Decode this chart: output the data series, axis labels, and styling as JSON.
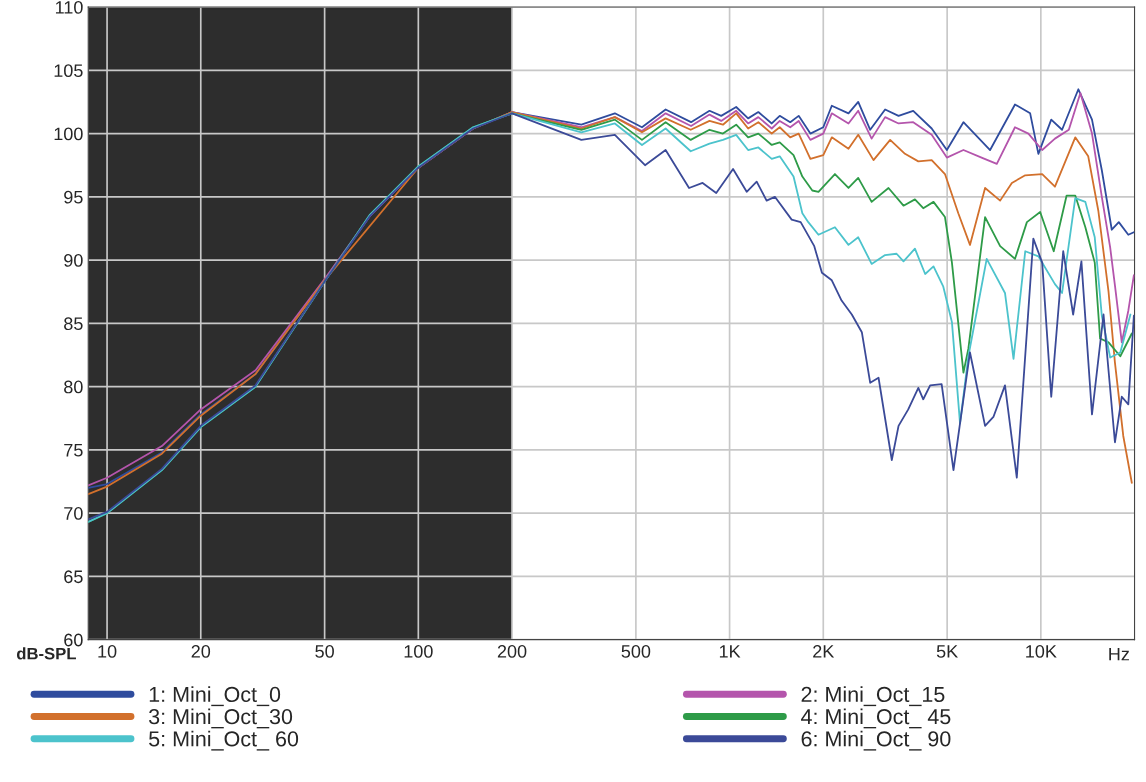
{
  "chart_data": {
    "type": "line",
    "xlabel": "Hz",
    "ylabel": "dB-SPL",
    "log": "x",
    "xlim": [
      8.7,
      20000
    ],
    "ylim": [
      60,
      110
    ],
    "xticks": [
      10,
      20,
      50,
      100,
      200,
      500,
      {
        "value": 1000,
        "label": "1K"
      },
      {
        "value": 2000,
        "label": "2K"
      },
      {
        "value": 5000,
        "label": "5K"
      },
      {
        "value": 10000,
        "label": "10K"
      }
    ],
    "yticks": [
      60,
      65,
      70,
      75,
      80,
      85,
      90,
      95,
      100,
      105,
      110
    ],
    "grid": true,
    "legend": "bottom",
    "marker": "none",
    "line_style": "solid",
    "bands": [
      {
        "axis": "x",
        "from": 8.7,
        "to": 200,
        "color": "#2d2d2d"
      }
    ],
    "series": [
      {
        "name": "1: Mini_Oct_0",
        "color": "#2f4c9e",
        "x": [
          8.7,
          10,
          15,
          20,
          30,
          50,
          70,
          100,
          150,
          200,
          334,
          428,
          523,
          623,
          752,
          862,
          940,
          1050,
          1147,
          1237,
          1366,
          1449,
          1566,
          1667,
          1818,
          2000,
          2130,
          2410,
          2590,
          2830,
          3160,
          3490,
          3890,
          4460,
          4990,
          5640,
          6870,
          8260,
          9240,
          9820,
          10800,
          11700,
          13200,
          14600,
          15700,
          16900,
          17800,
          19100,
          19900
        ],
        "values": [
          72.0,
          72.3,
          74.8,
          77.8,
          81.0,
          88.4,
          93.5,
          97.3,
          100.4,
          101.7,
          100.7,
          101.6,
          100.5,
          101.9,
          100.9,
          101.8,
          101.4,
          102.1,
          101.2,
          101.7,
          100.8,
          101.4,
          100.9,
          101.4,
          100.0,
          100.5,
          102.2,
          101.6,
          102.5,
          100.3,
          101.9,
          101.4,
          101.8,
          100.4,
          98.7,
          100.9,
          98.7,
          102.3,
          101.6,
          98.4,
          101.1,
          100.3,
          103.5,
          101.1,
          97.1,
          92.4,
          93.0,
          92.0,
          92.2
        ]
      },
      {
        "name": "2: Mini_Oct_15",
        "color": "#b455ac",
        "x": [
          8.7,
          10,
          15,
          20,
          30,
          50,
          70,
          100,
          150,
          200,
          334,
          428,
          523,
          623,
          752,
          862,
          940,
          1050,
          1147,
          1237,
          1366,
          1449,
          1566,
          1667,
          1818,
          2000,
          2130,
          2410,
          2590,
          2860,
          3160,
          3490,
          3890,
          4460,
          4990,
          5640,
          6450,
          7220,
          8260,
          9120,
          10100,
          11100,
          12300,
          13400,
          14600,
          15700,
          16700,
          17300,
          18200,
          19100,
          19900
        ],
        "values": [
          72.2,
          72.8,
          75.3,
          78.2,
          81.3,
          88.5,
          93.5,
          97.3,
          100.4,
          101.7,
          100.5,
          101.3,
          100.2,
          101.6,
          100.6,
          101.5,
          101.0,
          101.8,
          100.8,
          101.3,
          100.4,
          101.0,
          100.5,
          101.0,
          99.5,
          100.0,
          101.6,
          100.8,
          101.8,
          99.6,
          101.3,
          100.8,
          100.9,
          99.9,
          98.1,
          98.7,
          98.1,
          97.6,
          100.5,
          100.0,
          98.7,
          99.6,
          100.3,
          103.2,
          100.0,
          95.0,
          91.0,
          88.0,
          83.5,
          86.0,
          88.8
        ]
      },
      {
        "name": "3: Mini_Oct_30",
        "color": "#d2702c",
        "x": [
          8.7,
          10,
          15,
          20,
          30,
          50,
          100,
          150,
          200,
          334,
          428,
          523,
          623,
          750,
          862,
          952,
          1050,
          1147,
          1237,
          1366,
          1449,
          1566,
          1667,
          1818,
          2000,
          2130,
          2410,
          2590,
          2900,
          3280,
          3660,
          4040,
          4460,
          4920,
          5430,
          5920,
          6620,
          7400,
          8070,
          8910,
          10100,
          11100,
          12900,
          14200,
          15300,
          16500,
          17300,
          18400,
          19600
        ],
        "values": [
          71.5,
          72.1,
          74.7,
          77.7,
          81.0,
          88.4,
          97.3,
          100.4,
          101.7,
          100.4,
          101.3,
          100.1,
          101.2,
          100.3,
          101.0,
          100.7,
          101.6,
          100.4,
          100.9,
          100.0,
          100.5,
          99.7,
          100.0,
          98.0,
          98.3,
          99.7,
          98.8,
          99.9,
          97.9,
          99.5,
          98.4,
          97.8,
          97.9,
          96.8,
          93.7,
          91.2,
          95.7,
          94.7,
          96.1,
          96.7,
          96.8,
          95.8,
          99.7,
          98.2,
          93.9,
          87.5,
          81.9,
          76.1,
          72.4
        ]
      },
      {
        "name": "4: Mini_Oct_ 45",
        "color": "#2e9b48",
        "x": [
          8.7,
          10,
          15,
          20,
          30,
          50,
          70,
          100,
          150,
          200,
          334,
          428,
          523,
          623,
          750,
          862,
          952,
          1050,
          1147,
          1237,
          1366,
          1449,
          1605,
          1713,
          1844,
          1930,
          2180,
          2410,
          2590,
          2860,
          3240,
          3620,
          3940,
          4190,
          4520,
          4920,
          5180,
          5640,
          5850,
          6620,
          7400,
          8260,
          9020,
          9950,
          11000,
          12100,
          12900,
          13900,
          14900,
          15500,
          16500,
          18000,
          19600
        ],
        "values": [
          69.3,
          70.0,
          73.4,
          76.8,
          80.0,
          88.3,
          93.6,
          97.4,
          100.5,
          101.6,
          100.3,
          101.1,
          99.5,
          100.9,
          99.5,
          100.3,
          100.0,
          100.7,
          99.7,
          100.0,
          99.1,
          99.3,
          98.3,
          96.6,
          95.5,
          95.4,
          96.8,
          95.7,
          96.5,
          94.6,
          95.7,
          94.3,
          94.8,
          94.1,
          94.6,
          93.4,
          89.8,
          81.1,
          83.0,
          93.4,
          91.1,
          90.1,
          93.0,
          93.8,
          90.7,
          95.1,
          95.1,
          92.6,
          89.8,
          83.8,
          83.5,
          82.4,
          84.2
        ]
      },
      {
        "name": "5: Mini_Oct_ 60",
        "color": "#4cc3cc",
        "x": [
          8.7,
          10,
          15,
          20,
          30,
          50,
          70,
          100,
          150,
          200,
          334,
          428,
          523,
          623,
          750,
          862,
          952,
          1050,
          1147,
          1237,
          1366,
          1449,
          1605,
          1713,
          1790,
          1930,
          2180,
          2410,
          2590,
          2860,
          3160,
          3440,
          3620,
          3940,
          4250,
          4520,
          4860,
          5180,
          5500,
          5850,
          6700,
          7670,
          8170,
          8910,
          9820,
          11100,
          11700,
          12900,
          13900,
          14900,
          15700,
          16700,
          18000,
          19400
        ],
        "values": [
          69.3,
          70.0,
          73.4,
          76.8,
          80.0,
          88.3,
          93.6,
          97.4,
          100.5,
          101.6,
          100.1,
          100.8,
          99.1,
          100.4,
          98.6,
          99.2,
          99.5,
          99.9,
          98.7,
          98.9,
          98.0,
          98.2,
          96.6,
          93.7,
          93.0,
          92.0,
          92.6,
          91.2,
          91.8,
          89.7,
          90.4,
          90.5,
          89.9,
          90.9,
          88.9,
          89.5,
          87.9,
          85.1,
          77.1,
          82.4,
          90.1,
          87.4,
          82.2,
          90.7,
          90.3,
          88.1,
          87.4,
          94.9,
          94.6,
          91.8,
          85.6,
          82.3,
          82.7,
          85.7
        ]
      },
      {
        "name": "6: Mini_Oct_ 90",
        "color": "#3b4a98",
        "x": [
          8.7,
          10,
          15,
          20,
          30,
          50,
          70,
          100,
          150,
          200,
          334,
          428,
          535,
          623,
          741,
          819,
          906,
          1026,
          1135,
          1222,
          1315,
          1398,
          1583,
          1692,
          1871,
          1980,
          2130,
          2290,
          2470,
          2660,
          2830,
          3010,
          3320,
          3490,
          3750,
          4040,
          4190,
          4410,
          4800,
          5240,
          5920,
          6620,
          7040,
          7670,
          8370,
          9460,
          10100,
          10800,
          11800,
          12700,
          13500,
          14600,
          15900,
          17300,
          18200,
          19100,
          19900
        ],
        "values": [
          69.5,
          70.1,
          73.5,
          76.9,
          80.1,
          88.3,
          93.5,
          97.3,
          100.4,
          101.6,
          99.5,
          99.9,
          97.5,
          98.7,
          95.7,
          96.1,
          95.3,
          97.2,
          95.4,
          96.2,
          94.7,
          95.0,
          93.2,
          93.0,
          91.1,
          89.0,
          88.4,
          86.8,
          85.7,
          84.3,
          80.3,
          80.7,
          74.2,
          76.9,
          78.2,
          79.9,
          79.0,
          80.1,
          80.2,
          73.4,
          82.7,
          76.9,
          77.6,
          80.1,
          72.8,
          91.7,
          89.8,
          79.2,
          90.7,
          85.7,
          89.9,
          77.8,
          85.7,
          75.6,
          79.2,
          78.6,
          85.6
        ]
      }
    ]
  }
}
